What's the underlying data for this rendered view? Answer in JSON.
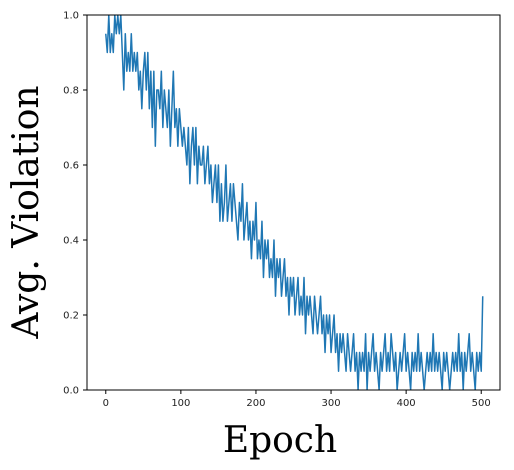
{
  "chart_data": {
    "type": "line",
    "title": "",
    "xlabel": "Epoch",
    "ylabel": "Avg. Violation",
    "xlim": [
      -25,
      525
    ],
    "ylim": [
      0.0,
      1.0
    ],
    "x_ticks": [
      0,
      100,
      200,
      300,
      400,
      500
    ],
    "y_ticks": [
      "0.0",
      "0.2",
      "0.4",
      "0.6",
      "0.8",
      "1.0"
    ],
    "grid": false,
    "legend": "none",
    "line_color": "#1f77b4",
    "series": [
      {
        "x_start": 0,
        "x_step": 2,
        "values": [
          0.95,
          0.9,
          1.0,
          0.9,
          0.95,
          0.9,
          1.0,
          0.95,
          1.0,
          0.95,
          1.0,
          0.9,
          0.8,
          0.95,
          0.85,
          0.9,
          0.85,
          0.95,
          0.85,
          0.9,
          0.85,
          0.9,
          0.8,
          0.85,
          0.75,
          0.85,
          0.9,
          0.8,
          0.9,
          0.75,
          0.85,
          0.7,
          0.85,
          0.65,
          0.8,
          0.8,
          0.75,
          0.85,
          0.7,
          0.8,
          0.75,
          0.7,
          0.8,
          0.65,
          0.75,
          0.85,
          0.7,
          0.75,
          0.65,
          0.75,
          0.7,
          0.65,
          0.7,
          0.65,
          0.6,
          0.7,
          0.55,
          0.65,
          0.7,
          0.6,
          0.7,
          0.55,
          0.65,
          0.6,
          0.6,
          0.65,
          0.55,
          0.6,
          0.65,
          0.55,
          0.6,
          0.5,
          0.55,
          0.6,
          0.5,
          0.6,
          0.45,
          0.55,
          0.45,
          0.5,
          0.6,
          0.45,
          0.5,
          0.55,
          0.45,
          0.55,
          0.5,
          0.45,
          0.4,
          0.5,
          0.45,
          0.55,
          0.4,
          0.45,
          0.5,
          0.4,
          0.45,
          0.35,
          0.45,
          0.4,
          0.5,
          0.35,
          0.4,
          0.35,
          0.45,
          0.3,
          0.4,
          0.35,
          0.4,
          0.3,
          0.35,
          0.3,
          0.4,
          0.25,
          0.35,
          0.3,
          0.35,
          0.25,
          0.3,
          0.35,
          0.25,
          0.3,
          0.2,
          0.3,
          0.25,
          0.3,
          0.2,
          0.25,
          0.3,
          0.2,
          0.25,
          0.2,
          0.3,
          0.15,
          0.25,
          0.2,
          0.25,
          0.2,
          0.15,
          0.25,
          0.2,
          0.15,
          0.2,
          0.25,
          0.15,
          0.2,
          0.1,
          0.2,
          0.15,
          0.2,
          0.1,
          0.15,
          0.2,
          0.1,
          0.15,
          0.05,
          0.15,
          0.1,
          0.15,
          0.1,
          0.05,
          0.15,
          0.1,
          0.05,
          0.1,
          0.15,
          0.05,
          0.1,
          0.0,
          0.1,
          0.05,
          0.1,
          0.05,
          0.15,
          0.0,
          0.1,
          0.05,
          0.1,
          0.15,
          0.05,
          0.1,
          0.05,
          0.0,
          0.1,
          0.05,
          0.1,
          0.15,
          0.05,
          0.1,
          0.05,
          0.15,
          0.1,
          0.05,
          0.1,
          0.0,
          0.05,
          0.1,
          0.05,
          0.1,
          0.15,
          0.05,
          0.1,
          0.05,
          0.0,
          0.1,
          0.05,
          0.1,
          0.05,
          0.15,
          0.05,
          0.1,
          0.05,
          0.0,
          0.05,
          0.1,
          0.05,
          0.1,
          0.05,
          0.15,
          0.05,
          0.1,
          0.05,
          0.1,
          0.05,
          0.0,
          0.1,
          0.05,
          0.1,
          0.05,
          0.0,
          0.05,
          0.1,
          0.05,
          0.1,
          0.05,
          0.15,
          0.05,
          0.1,
          0.0,
          0.1,
          0.05,
          0.1,
          0.15,
          0.05,
          0.1,
          0.05,
          0.0,
          0.1,
          0.05,
          0.1,
          0.05,
          0.25
        ]
      }
    ]
  }
}
